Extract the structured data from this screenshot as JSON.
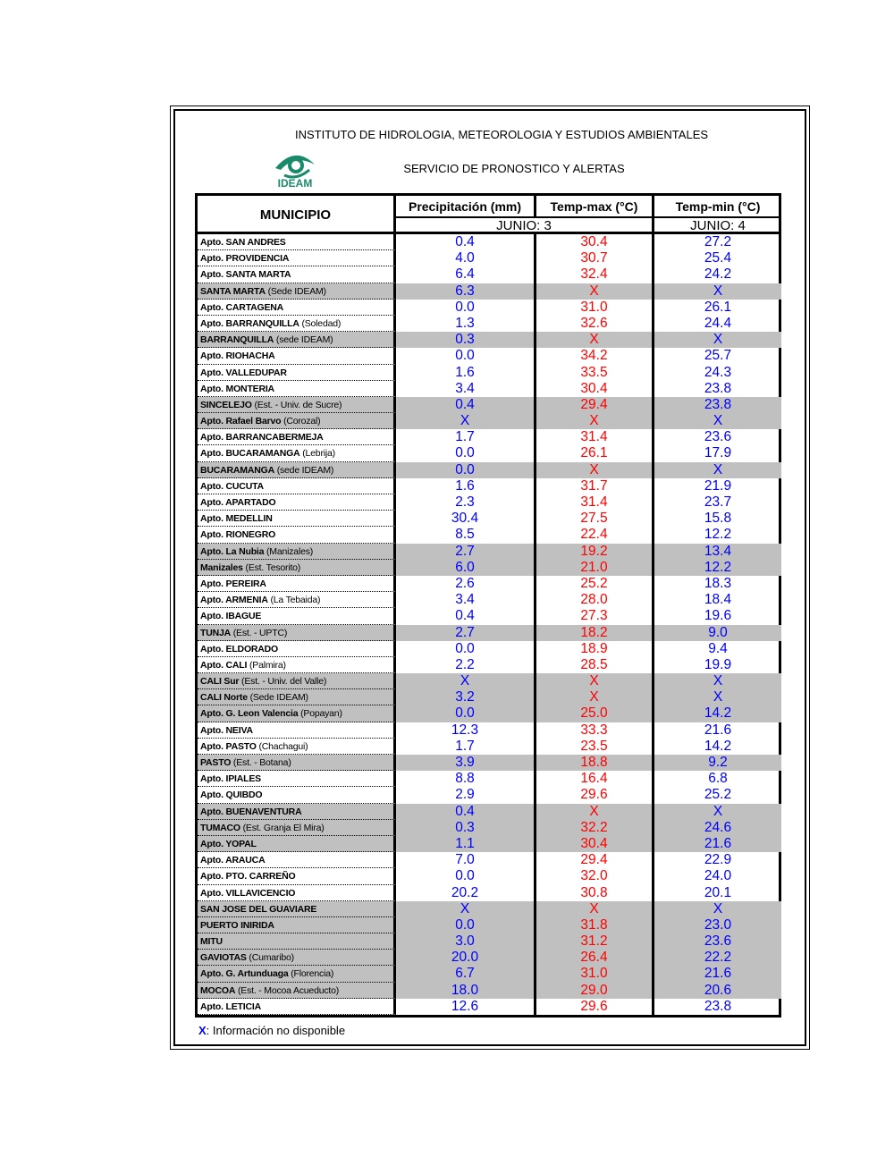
{
  "header": {
    "institute": "INSTITUTO DE HIDROLOGIA, METEOROLOGIA Y ESTUDIOS AMBIENTALES",
    "logo_text": "IDEAM",
    "service": "SERVICIO DE PRONOSTICO Y ALERTAS"
  },
  "table": {
    "columns": {
      "municipio": "MUNICIPIO",
      "precipitacion": "Precipitación (mm)",
      "temp_max": "Temp-max (°C)",
      "temp_min": "Temp-min (°C)"
    },
    "dates": {
      "precip_tmax": "JUNIO: 3",
      "tmin": "JUNIO: 4"
    },
    "rows": [
      {
        "name": "Apto. SAN ANDRES",
        "precipitacion": "0.4",
        "temp_max": "30.4",
        "temp_min": "27.2",
        "shaded": false
      },
      {
        "name": "Apto. PROVIDENCIA",
        "precipitacion": "4.0",
        "temp_max": "30.7",
        "temp_min": "25.4",
        "shaded": false
      },
      {
        "name": "Apto. SANTA MARTA",
        "precipitacion": "6.4",
        "temp_max": "32.4",
        "temp_min": "24.2",
        "shaded": false
      },
      {
        "name": "SANTA MARTA",
        "detail": "(Sede IDEAM)",
        "precipitacion": "6.3",
        "temp_max": "X",
        "temp_min": "X",
        "shaded": true
      },
      {
        "name": "Apto. CARTAGENA",
        "precipitacion": "0.0",
        "temp_max": "31.0",
        "temp_min": "26.1",
        "shaded": false
      },
      {
        "name": "Apto. BARRANQUILLA",
        "detail": "(Soledad)",
        "precipitacion": "1.3",
        "temp_max": "32.6",
        "temp_min": "24.4",
        "shaded": false
      },
      {
        "name": "BARRANQUILLA",
        "detail": "(sede IDEAM)",
        "precipitacion": "0.3",
        "temp_max": "X",
        "temp_min": "X",
        "shaded": true
      },
      {
        "name": "Apto. RIOHACHA",
        "precipitacion": "0.0",
        "temp_max": "34.2",
        "temp_min": "25.7",
        "shaded": false
      },
      {
        "name": "Apto. VALLEDUPAR",
        "precipitacion": "1.6",
        "temp_max": "33.5",
        "temp_min": "24.3",
        "shaded": false
      },
      {
        "name": "Apto. MONTERIA",
        "precipitacion": "3.4",
        "temp_max": "30.4",
        "temp_min": "23.8",
        "shaded": false
      },
      {
        "name": "SINCELEJO",
        "detail": "(Est. - Univ. de Sucre)",
        "precipitacion": "0.4",
        "temp_max": "29.4",
        "temp_min": "23.8",
        "shaded": true
      },
      {
        "name": "Apto. Rafael Barvo",
        "detail": "(Corozal)",
        "precipitacion": "X",
        "temp_max": "X",
        "temp_min": "X",
        "shaded": true
      },
      {
        "name": "Apto. BARRANCABERMEJA",
        "precipitacion": "1.7",
        "temp_max": "31.4",
        "temp_min": "23.6",
        "shaded": false
      },
      {
        "name": "Apto. BUCARAMANGA",
        "detail": "(Lebrija)",
        "precipitacion": "0.0",
        "temp_max": "26.1",
        "temp_min": "17.9",
        "shaded": false
      },
      {
        "name": "BUCARAMANGA",
        "detail": "(sede IDEAM)",
        "precipitacion": "0.0",
        "temp_max": "X",
        "temp_min": "X",
        "shaded": true
      },
      {
        "name": "Apto. CUCUTA",
        "precipitacion": "1.6",
        "temp_max": "31.7",
        "temp_min": "21.9",
        "shaded": false
      },
      {
        "name": "Apto. APARTADO",
        "precipitacion": "2.3",
        "temp_max": "31.4",
        "temp_min": "23.7",
        "shaded": false
      },
      {
        "name": "Apto. MEDELLIN",
        "precipitacion": "30.4",
        "temp_max": "27.5",
        "temp_min": "15.8",
        "shaded": false
      },
      {
        "name": "Apto. RIONEGRO",
        "precipitacion": "8.5",
        "temp_max": "22.4",
        "temp_min": "12.2",
        "shaded": false
      },
      {
        "name": "Apto. La Nubia",
        "detail": "(Manizales)",
        "precipitacion": "2.7",
        "temp_max": "19.2",
        "temp_min": "13.4",
        "shaded": true
      },
      {
        "name": "Manizales",
        "detail": "(Est. Tesorito)",
        "precipitacion": "6.0",
        "temp_max": "21.0",
        "temp_min": "12.2",
        "shaded": true
      },
      {
        "name": "Apto. PEREIRA",
        "precipitacion": "2.6",
        "temp_max": "25.2",
        "temp_min": "18.3",
        "shaded": false
      },
      {
        "name": "Apto. ARMENIA",
        "detail": "(La Tebaida)",
        "precipitacion": "3.4",
        "temp_max": "28.0",
        "temp_min": "18.4",
        "shaded": false
      },
      {
        "name": "Apto. IBAGUE",
        "precipitacion": "0.4",
        "temp_max": "27.3",
        "temp_min": "19.6",
        "shaded": false
      },
      {
        "name": "TUNJA",
        "detail": "(Est. - UPTC)",
        "precipitacion": "2.7",
        "temp_max": "18.2",
        "temp_min": "9.0",
        "shaded": true
      },
      {
        "name": "Apto. ELDORADO",
        "precipitacion": "0.0",
        "temp_max": "18.9",
        "temp_min": "9.4",
        "shaded": false
      },
      {
        "name": "Apto. CALI",
        "detail": "(Palmira)",
        "precipitacion": "2.2",
        "temp_max": "28.5",
        "temp_min": "19.9",
        "shaded": false
      },
      {
        "name": "CALI Sur",
        "detail": "(Est. - Univ. del Valle)",
        "precipitacion": "X",
        "temp_max": "X",
        "temp_min": "X",
        "shaded": true
      },
      {
        "name": "CALI Norte",
        "detail": "(Sede IDEAM)",
        "precipitacion": "3.2",
        "temp_max": "X",
        "temp_min": "X",
        "shaded": true
      },
      {
        "name": "Apto. G. Leon Valencia",
        "detail": "(Popayan)",
        "precipitacion": "0.0",
        "temp_max": "25.0",
        "temp_min": "14.2",
        "shaded": true
      },
      {
        "name": "Apto. NEIVA",
        "precipitacion": "12.3",
        "temp_max": "33.3",
        "temp_min": "21.6",
        "shaded": false
      },
      {
        "name": "Apto. PASTO",
        "detail": "(Chachagui)",
        "precipitacion": "1.7",
        "temp_max": "23.5",
        "temp_min": "14.2",
        "shaded": false
      },
      {
        "name": "PASTO",
        "detail": "(Est. - Botana)",
        "precipitacion": "3.9",
        "temp_max": "18.8",
        "temp_min": "9.2",
        "shaded": true
      },
      {
        "name": "Apto. IPIALES",
        "precipitacion": "8.8",
        "temp_max": "16.4",
        "temp_min": "6.8",
        "shaded": false
      },
      {
        "name": "Apto. QUIBDO",
        "precipitacion": "2.9",
        "temp_max": "29.6",
        "temp_min": "25.2",
        "shaded": false
      },
      {
        "name": "Apto. BUENAVENTURA",
        "precipitacion": "0.4",
        "temp_max": "X",
        "temp_min": "X",
        "shaded": true
      },
      {
        "name": "TUMACO",
        "detail": "(Est. Granja El Mira)",
        "precipitacion": "0.3",
        "temp_max": "32.2",
        "temp_min": "24.6",
        "shaded": true
      },
      {
        "name": "Apto. YOPAL",
        "precipitacion": "1.1",
        "temp_max": "30.4",
        "temp_min": "21.6",
        "shaded": true
      },
      {
        "name": "Apto. ARAUCA",
        "precipitacion": "7.0",
        "temp_max": "29.4",
        "temp_min": "22.9",
        "shaded": false
      },
      {
        "name": "Apto. PTO. CARREÑO",
        "precipitacion": "0.0",
        "temp_max": "32.0",
        "temp_min": "24.0",
        "shaded": false
      },
      {
        "name": "Apto. VILLAVICENCIO",
        "precipitacion": "20.2",
        "temp_max": "30.8",
        "temp_min": "20.1",
        "shaded": false
      },
      {
        "name": "SAN JOSE DEL GUAVIARE",
        "precipitacion": "X",
        "temp_max": "X",
        "temp_min": "X",
        "shaded": true
      },
      {
        "name": "PUERTO INIRIDA",
        "precipitacion": "0.0",
        "temp_max": "31.8",
        "temp_min": "23.0",
        "shaded": true
      },
      {
        "name": "MITU",
        "precipitacion": "3.0",
        "temp_max": "31.2",
        "temp_min": "23.6",
        "shaded": true
      },
      {
        "name": "GAVIOTAS",
        "detail": "(Cumaribo)",
        "precipitacion": "20.0",
        "temp_max": "26.4",
        "temp_min": "22.2",
        "shaded": true
      },
      {
        "name": "Apto. G. Artunduaga",
        "detail": "(Florencia)",
        "precipitacion": "6.7",
        "temp_max": "31.0",
        "temp_min": "21.6",
        "shaded": true
      },
      {
        "name": "MOCOA",
        "detail": "(Est. - Mocoa Acueducto)",
        "precipitacion": "18.0",
        "temp_max": "29.0",
        "temp_min": "20.6",
        "shaded": true
      },
      {
        "name": "Apto. LETICIA",
        "precipitacion": "12.6",
        "temp_max": "29.6",
        "temp_min": "23.8",
        "shaded": false
      }
    ]
  },
  "footnote": {
    "symbol": "X",
    "text": ": Información no disponible"
  }
}
